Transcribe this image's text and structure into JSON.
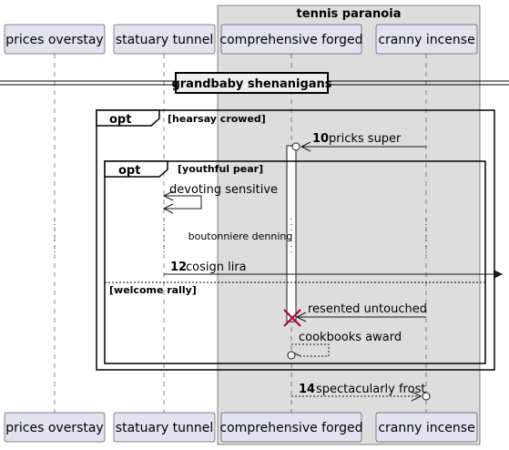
{
  "box_group": {
    "title": "tennis paranoia"
  },
  "participants": [
    {
      "id": "p1",
      "label": "prices overstay"
    },
    {
      "id": "p2",
      "label": "statuary tunnel"
    },
    {
      "id": "p3",
      "label": "comprehensive forged"
    },
    {
      "id": "p4",
      "label": "cranny incense"
    }
  ],
  "divider": {
    "label": "grandbaby shenanigans"
  },
  "fragments": {
    "outer": {
      "keyword": "opt",
      "guard": "[hearsay crowed]"
    },
    "inner": {
      "keyword": "opt",
      "guard": "[youthful pear]",
      "else_guard": "[welcome rally]"
    }
  },
  "messages": [
    {
      "id": "m1",
      "number": "10",
      "text": "pricks super",
      "from": "cranny incense",
      "to": "comprehensive forged"
    },
    {
      "id": "m2",
      "number": "",
      "text": "devoting sensitive",
      "from": "statuary tunnel",
      "to": "statuary tunnel"
    },
    {
      "id": "m3",
      "number": "12",
      "text": "cosign lira",
      "from": "statuary tunnel",
      "to": "outside"
    },
    {
      "id": "m4",
      "number": "",
      "text": "resented untouched",
      "from": "cranny incense",
      "to": "comprehensive forged"
    },
    {
      "id": "m5",
      "number": "",
      "text": "cookbooks award",
      "from": "comprehensive forged",
      "to": "comprehensive forged"
    },
    {
      "id": "m6",
      "number": "14",
      "text": "spectacularly frost",
      "from": "comprehensive forged",
      "to": "cranny incense"
    }
  ],
  "delay": {
    "text": "boutonniere denning"
  }
}
